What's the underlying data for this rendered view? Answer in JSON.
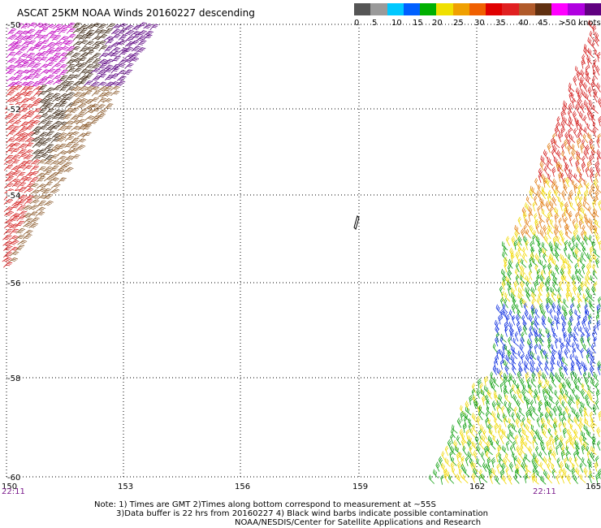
{
  "title": "ASCAT 25KM NOAA Winds 20160227 descending",
  "legend": {
    "colors": [
      "#555555",
      "#9a9a9a",
      "#00c8ff",
      "#0060ff",
      "#00b000",
      "#f0e000",
      "#f0a000",
      "#f06000",
      "#e00000",
      "#e02020",
      "#b05a2a",
      "#603010",
      "#ff00ff",
      "#b000e0",
      "#600080"
    ],
    "labels": [
      "0",
      "5",
      "10",
      "15",
      "20",
      "25",
      "30",
      "35",
      "40",
      "45",
      ">50 knots"
    ]
  },
  "axes": {
    "lon_labels": [
      "150",
      "153",
      "156",
      "159",
      "162",
      "165"
    ],
    "lat_labels": [
      "-50",
      "-52",
      "-54",
      "-56",
      "-58",
      "-60"
    ]
  },
  "times": {
    "left": "22:11",
    "right": "22:11"
  },
  "notes": {
    "line1": "Note: 1) Times are GMT 2)Times along bottom correspond to measurement at ~55S",
    "line2": "3)Data buffer is 22 hrs from 20160227 4) Black wind barbs indicate possible contamination",
    "line3": "NOAA/NESDIS/Center for Satellite Applications and Research"
  },
  "colors": {
    "purple": "#c000c0",
    "dark_purple": "#5a0080",
    "brown": "#8b5a2b",
    "dark_brown": "#3a2410",
    "red": "#d42020",
    "orange": "#e07a10",
    "yellow": "#f0d800",
    "green": "#10a010",
    "blue": "#1030e0"
  }
}
